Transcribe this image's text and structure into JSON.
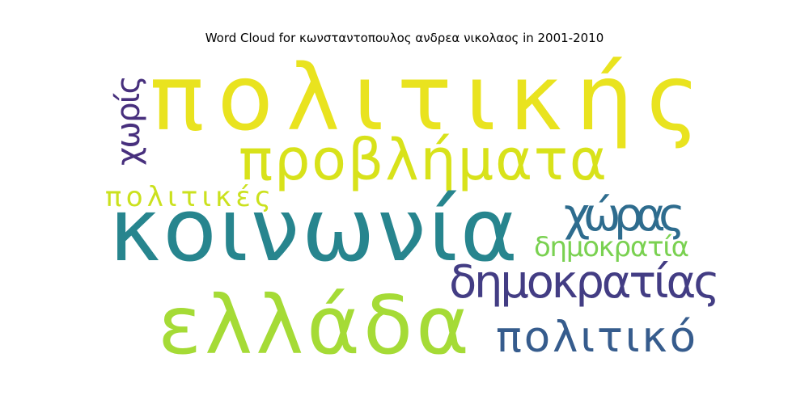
{
  "title": "Word Cloud for κωνσταντοπουλος ανδρεα νικολαος in 2001-2010",
  "words": [
    {
      "text": "πολιτικής",
      "color": "#e9e31f"
    },
    {
      "text": "προβλήματα",
      "color": "#d8e21a"
    },
    {
      "text": "κοινωνία",
      "color": "#27858e"
    },
    {
      "text": "χώρας",
      "color": "#2e6c8e"
    },
    {
      "text": "δημοκρατία",
      "color": "#7ad151"
    },
    {
      "text": "δημοκρατίας",
      "color": "#433d84"
    },
    {
      "text": "ελλάδα",
      "color": "#a5db36"
    },
    {
      "text": "πολιτικό",
      "color": "#365c8d"
    },
    {
      "text": "χωρίς",
      "color": "#472f7d"
    },
    {
      "text": "πολιτικές",
      "color": "#cbe11e"
    }
  ]
}
